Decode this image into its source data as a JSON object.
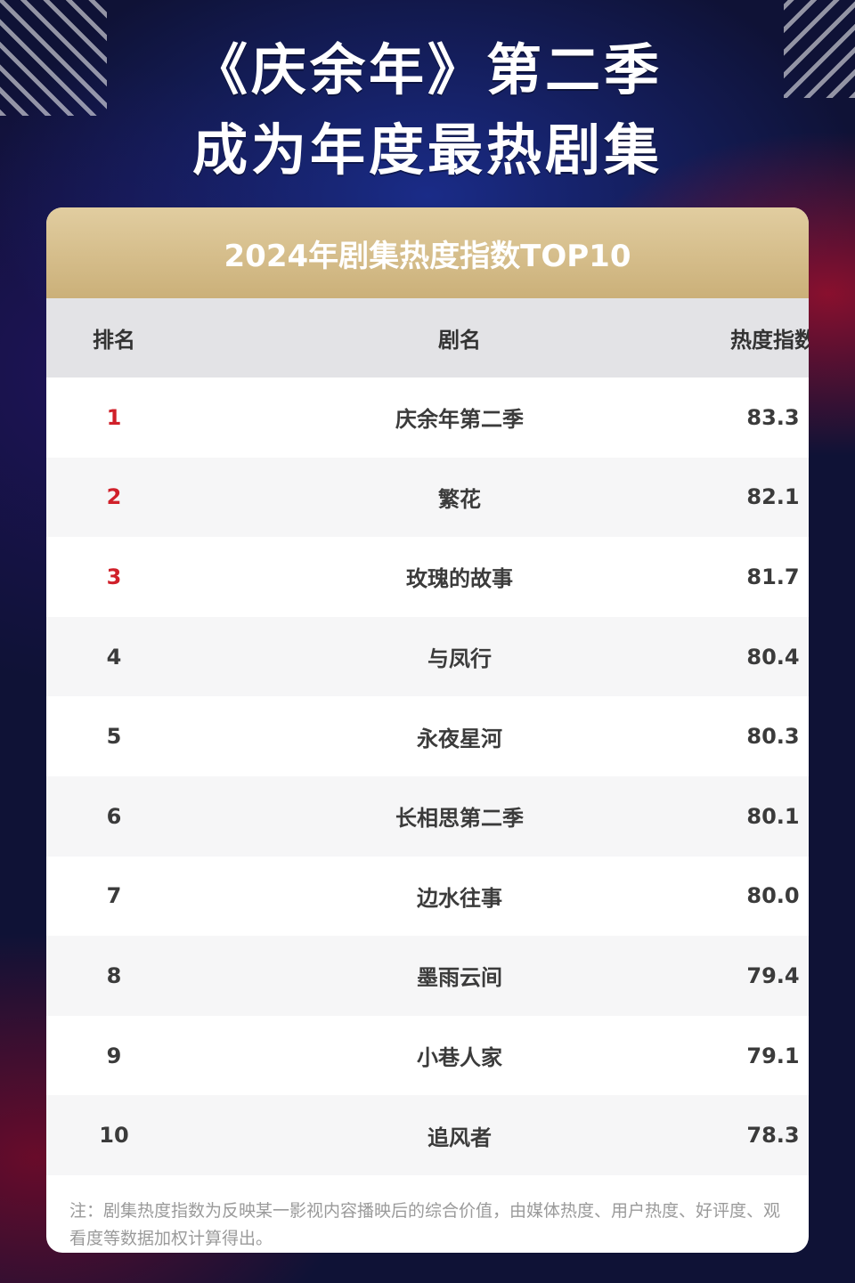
{
  "headline": {
    "line1": "《庆余年》第二季",
    "line2": "成为年度最热剧集"
  },
  "table": {
    "title": "2024年剧集热度指数TOP10",
    "headers": {
      "rank": "排名",
      "name": "剧名",
      "score": "热度指数"
    },
    "rows": [
      {
        "rank": "1",
        "name": "庆余年第二季",
        "score": "83.3"
      },
      {
        "rank": "2",
        "name": "繁花",
        "score": "82.1"
      },
      {
        "rank": "3",
        "name": "玫瑰的故事",
        "score": "81.7"
      },
      {
        "rank": "4",
        "name": "与凤行",
        "score": "80.4"
      },
      {
        "rank": "5",
        "name": "永夜星河",
        "score": "80.3"
      },
      {
        "rank": "6",
        "name": "长相思第二季",
        "score": "80.1"
      },
      {
        "rank": "7",
        "name": "边水往事",
        "score": "80.0"
      },
      {
        "rank": "8",
        "name": "墨雨云间",
        "score": "79.4"
      },
      {
        "rank": "9",
        "name": "小巷人家",
        "score": "79.1"
      },
      {
        "rank": "10",
        "name": "追风者",
        "score": "78.3"
      }
    ],
    "note": "注：剧集热度指数为反映某一影视内容播映后的综合价值，由媒体热度、用户热度、好评度、观看度等数据加权计算得出。"
  },
  "colors": {
    "background": "#0f1236",
    "gold_header": "#cbb079",
    "top3_rank": "#d0202a"
  }
}
